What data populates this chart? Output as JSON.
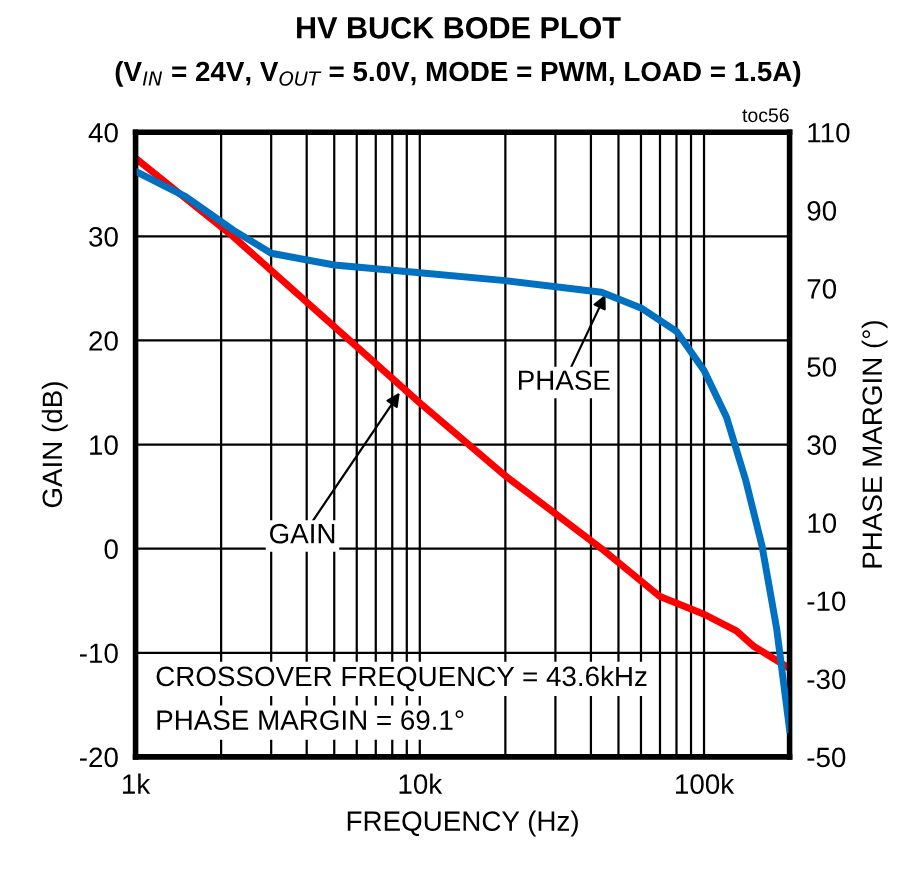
{
  "chart_data": {
    "type": "line",
    "title": "HV BUCK BODE PLOT",
    "subtitle": "(V$_{IN}$ = 24V, V$_{OUT}$ = 5.0V, MODE = PWM, LOAD = 1.5A)",
    "xlabel": "FREQUENCY (Hz)",
    "ylabel": "GAIN (dB)",
    "y2label": "PHASE MARGIN (°)",
    "log": "x",
    "grid": true,
    "marker": "none",
    "line_style": "solid",
    "xlim": [
      1000,
      200000
    ],
    "xticks": [
      {
        "value": 1000,
        "label": "1k"
      },
      {
        "value": 2000,
        "label": null
      },
      {
        "value": 3000,
        "label": null
      },
      {
        "value": 4000,
        "label": null
      },
      {
        "value": 5000,
        "label": null
      },
      {
        "value": 6000,
        "label": null
      },
      {
        "value": 7000,
        "label": null
      },
      {
        "value": 8000,
        "label": null
      },
      {
        "value": 9000,
        "label": null
      },
      {
        "value": 10000,
        "label": "10k"
      },
      {
        "value": 20000,
        "label": null
      },
      {
        "value": 30000,
        "label": null
      },
      {
        "value": 40000,
        "label": null
      },
      {
        "value": 50000,
        "label": null
      },
      {
        "value": 60000,
        "label": null
      },
      {
        "value": 70000,
        "label": null
      },
      {
        "value": 80000,
        "label": null
      },
      {
        "value": 90000,
        "label": null
      },
      {
        "value": 100000,
        "label": "100k"
      }
    ],
    "ylim": [
      -20,
      40
    ],
    "yticks": [
      -20,
      -10,
      0,
      10,
      20,
      30,
      40
    ],
    "y2lim": [
      -50,
      110
    ],
    "y2ticks": [
      -50,
      -30,
      -10,
      10,
      30,
      50,
      70,
      90,
      110
    ],
    "series": [
      {
        "color": "#ff0000",
        "x": [
          1000,
          2200,
          10000,
          20000,
          43600,
          70000,
          100000,
          130000,
          150000,
          200000
        ],
        "values": [
          37.5,
          30,
          14,
          7,
          0,
          -4.6,
          -6.3,
          -7.9,
          -9.4,
          -11.5
        ]
      },
      {
        "axis": "y2",
        "color": "#0070c0",
        "x": [
          1000,
          1500,
          2200,
          3000,
          5000,
          10000,
          20000,
          43600,
          60000,
          80000,
          100000,
          120000,
          140000,
          160000,
          180000,
          200000
        ],
        "values": [
          100,
          93.5,
          85,
          79,
          76,
          74,
          72,
          69,
          65,
          59,
          49,
          37,
          21,
          4,
          -17,
          -43
        ]
      }
    ],
    "annotations": [
      "toc56",
      "CROSSOVER FREQUENCY = 43.6kHz",
      "PHASE MARGIN = 69.1°",
      {
        "text": "GAIN",
        "x": 8500,
        "y": 15
      },
      {
        "text": "PHASE",
        "x": 45000,
        "y": 24.4
      }
    ]
  }
}
